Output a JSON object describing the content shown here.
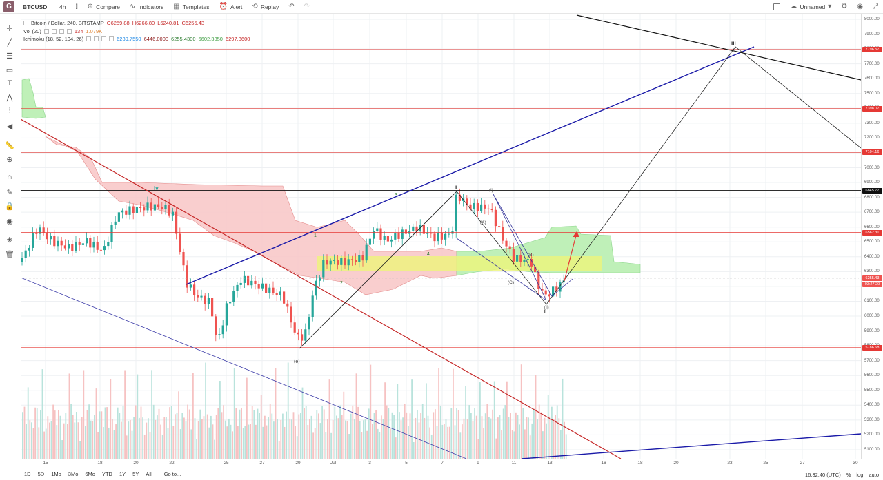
{
  "header": {
    "logo": "G",
    "symbol": "BTCUSD",
    "interval": "4h",
    "compare": "Compare",
    "indicators": "Indicators",
    "templates": "Templates",
    "alert": "Alert",
    "replay": "Replay",
    "layout_name": "Unnamed"
  },
  "legend": {
    "title": "Bitcoin / Dollar, 240, BITSTAMP",
    "open": "O6259.88",
    "high": "H6266.80",
    "low": "L6240.81",
    "close": "C6255.43",
    "vol_label": "Vol (20)",
    "vol_value": "134",
    "vol_ma": "1.079K",
    "ichimoku_label": "Ichimoku (18, 52, 104, 26)",
    "ichimoku_values": [
      "6239.7550",
      "6446.0000",
      "6255.4300",
      "6602.3350",
      "6297.3600"
    ]
  },
  "colors": {
    "up": "#26a69a",
    "down": "#ef5350",
    "hline": "#e53935",
    "trend_blue": "#1a1aa8",
    "cloud_red": "#f8bcbc",
    "cloud_green": "#b6efb0",
    "zone_yellow": "#eef57a"
  },
  "price_axis": {
    "ticks": [
      "8000.00",
      "7900.00",
      "7800.00",
      "7700.00",
      "7600.00",
      "7500.00",
      "7400.00",
      "7300.00",
      "7200.00",
      "7100.00",
      "7000.00",
      "6900.00",
      "6800.00",
      "6700.00",
      "6600.00",
      "6500.00",
      "6400.00",
      "6300.00",
      "6200.00",
      "6100.00",
      "6000.00",
      "5900.00",
      "5800.00",
      "5700.00",
      "5600.00",
      "5500.00",
      "5400.00",
      "5300.00",
      "5200.00",
      "5100.00"
    ],
    "labels": [
      {
        "text": "7796.57",
        "color": "#e53935",
        "price": 7796.57
      },
      {
        "text": "7398.07",
        "color": "#e53935",
        "price": 7398.07
      },
      {
        "text": "7104.16",
        "color": "#e53935",
        "price": 7104.16
      },
      {
        "text": "6845.77",
        "color": "#111111",
        "price": 6845.77
      },
      {
        "text": "6562.31",
        "color": "#e53935",
        "price": 6562.31
      },
      {
        "text": "6255.43",
        "color": "#ef5350",
        "price": 6255.43
      },
      {
        "text": "03:27:20",
        "color": "#ef5350",
        "price": 6200
      },
      {
        "text": "5786.68",
        "color": "#e53935",
        "price": 5786.68
      }
    ]
  },
  "time_axis": {
    "ticks": [
      "15",
      "18",
      "20",
      "22",
      "25",
      "27",
      "29",
      "Jul",
      "3",
      "5",
      "7",
      "9",
      "11",
      "13",
      "16",
      "18",
      "20",
      "23",
      "25",
      "27",
      "30"
    ]
  },
  "wave_labels": [
    "iv",
    "i",
    "ii",
    "iii",
    "1",
    "2",
    "3",
    "4",
    "(e)",
    "(A)",
    "(B)",
    "(C)",
    "(i)",
    "(ii)"
  ],
  "footer": {
    "ranges": [
      "1D",
      "5D",
      "1Mo",
      "3Mo",
      "6Mo",
      "YTD",
      "1Y",
      "5Y",
      "All"
    ],
    "goto": "Go to...",
    "clock": "16:32:40 (UTC)",
    "pct": "%",
    "log": "log",
    "auto": "auto"
  }
}
